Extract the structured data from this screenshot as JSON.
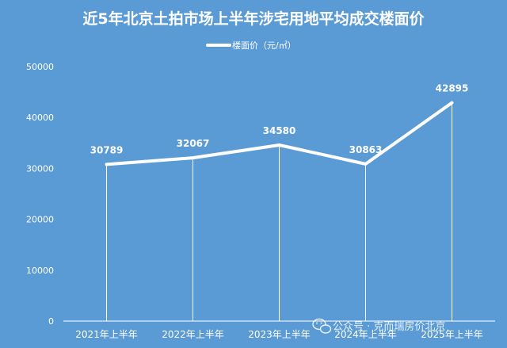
{
  "chart_data": {
    "type": "line",
    "title": "近5年北京土拍市场上半年涉宅用地平均成交楼面价",
    "categories": [
      "2021年上半年",
      "2022年上半年",
      "2023年上半年",
      "2024年上半年",
      "2025年上半年"
    ],
    "series": [
      {
        "name": "楼面价（元/㎡）",
        "values": [
          30789,
          32067,
          34580,
          30863,
          42895
        ]
      }
    ],
    "ylim": [
      0,
      50000
    ],
    "yticks": [
      0,
      10000,
      20000,
      30000,
      40000,
      50000
    ],
    "grid": "vertical drop lines",
    "legend": "top-center"
  },
  "watermark": {
    "icon": "wechat-icon",
    "text": "公众号 · 克而瑞房价北京"
  },
  "colors": {
    "background": "#5b9bd5",
    "line": "#ffffff",
    "axis": "#ffffff"
  }
}
